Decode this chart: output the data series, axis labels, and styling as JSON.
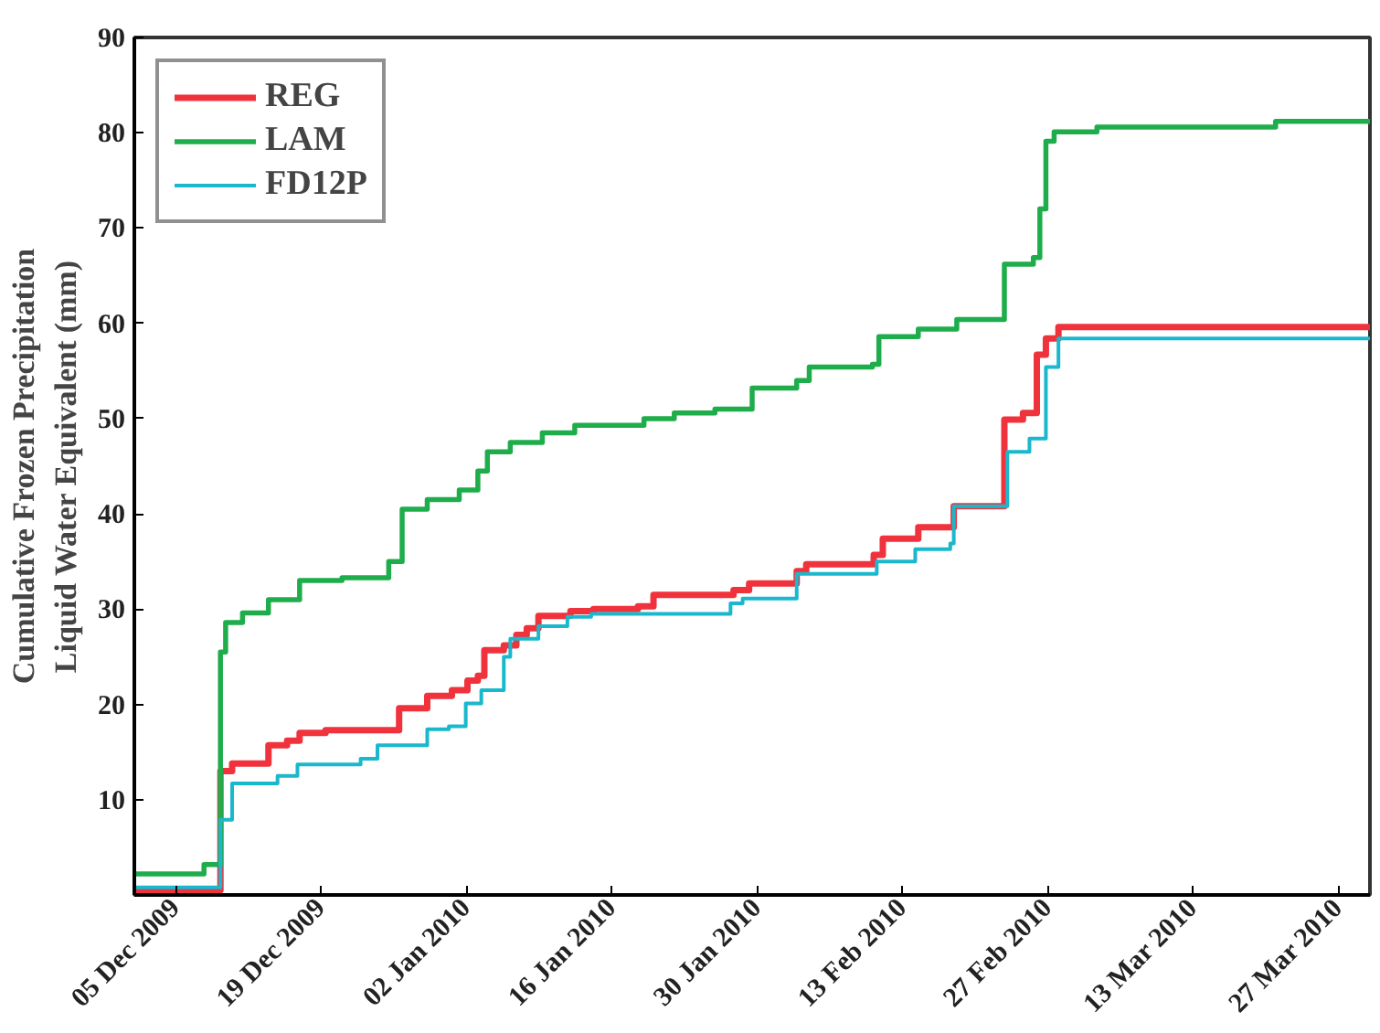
{
  "chart_data": {
    "type": "step",
    "ylabel": "Cumulative Frozen Precipitation\nLiquid Water Equivalent (mm)",
    "xlim": [
      "2009-12-01",
      "2010-03-30"
    ],
    "xticks": [
      {
        "value": "2009-12-05",
        "label": "05 Dec 2009"
      },
      {
        "value": "2009-12-19",
        "label": "19 Dec 2009"
      },
      {
        "value": "2010-01-02",
        "label": "02 Jan 2010"
      },
      {
        "value": "2010-01-16",
        "label": "16 Jan 2010"
      },
      {
        "value": "2010-01-30",
        "label": "30 Jan 2010"
      },
      {
        "value": "2010-02-13",
        "label": "13 Feb 2010"
      },
      {
        "value": "2010-02-27",
        "label": "27 Feb 2010"
      },
      {
        "value": "2010-03-13",
        "label": "13 Mar 2010"
      },
      {
        "value": "2010-03-27",
        "label": "27 Mar 2010"
      }
    ],
    "ylim": [
      0,
      90
    ],
    "yticks": [
      10,
      20,
      30,
      40,
      50,
      60,
      70,
      80,
      90
    ],
    "grid": false,
    "legend": "top left",
    "series": [
      {
        "name": "REG",
        "color": "#f0323c",
        "x": [
          "2009-12-01",
          "2009-12-09T07:00",
          "2009-12-10T10:00",
          "2009-12-13T22:00",
          "2009-12-15T17:00",
          "2009-12-16T22:00",
          "2009-12-19T10:00",
          "2009-12-26T12:00",
          "2009-12-29T05:00",
          "2009-12-31T14:00",
          "2010-01-02T02:00",
          "2010-01-03T02:00",
          "2010-01-03T17:00",
          "2010-01-05T14:00",
          "2010-01-06T19:00",
          "2010-01-07T19:00",
          "2010-01-08T22:00",
          "2010-01-12",
          "2010-01-14T05:00",
          "2010-01-18T12:00",
          "2010-01-20",
          "2010-01-27T17:00",
          "2010-01-29T05:00",
          "2010-02-02T19:00",
          "2010-02-03T17:00",
          "2010-02-10T05:00",
          "2010-02-11T02:00",
          "2010-02-14T12:00",
          "2010-02-17T22:00",
          "2010-02-22T19:00",
          "2010-02-24T14:00",
          "2010-02-25T22:00",
          "2010-02-26T19:00",
          "2010-02-28",
          "2010-03-30"
        ],
        "values": [
          0.5,
          13,
          13.8,
          15.7,
          16.2,
          17,
          17.3,
          19.6,
          20.9,
          21.5,
          22.5,
          23,
          25.7,
          26.2,
          27.3,
          28,
          29.3,
          29.8,
          30,
          30.3,
          31.5,
          32,
          32.7,
          34,
          34.7,
          35.7,
          37.4,
          38.6,
          40.8,
          49.9,
          50.6,
          56.7,
          58.4,
          59.6,
          59.6
        ]
      },
      {
        "name": "LAM",
        "color": "#1fad4b",
        "x": [
          "2009-12-01",
          "2009-12-07T17:00",
          "2009-12-09T07:00",
          "2009-12-09T19:00",
          "2009-12-11T10:00",
          "2009-12-13T22:00",
          "2009-12-16T22:00",
          "2009-12-21",
          "2009-12-25T12:00",
          "2009-12-26T19:00",
          "2009-12-29T05:00",
          "2010-01-01T07:00",
          "2010-01-03T02:00",
          "2010-01-04",
          "2010-01-06T05:00",
          "2010-01-09T07:00",
          "2010-01-12T10:00",
          "2010-01-19T02:00",
          "2010-01-22",
          "2010-01-25T22:00",
          "2010-01-29T12:00",
          "2010-02-02T19:00",
          "2010-02-04",
          "2010-02-10T02:00",
          "2010-02-10T17:00",
          "2010-02-14T12:00",
          "2010-02-18T05:00",
          "2010-02-22T19:00",
          "2010-02-25T14:00",
          "2010-02-26T05:00",
          "2010-02-26T19:00",
          "2010-02-27T14:00",
          "2010-03-03T17:00",
          "2010-03-20T22:00",
          "2010-03-30"
        ],
        "values": [
          2.2,
          3.2,
          25.5,
          28.6,
          29.6,
          31,
          33,
          33.3,
          35,
          40.5,
          41.5,
          42.5,
          44.5,
          46.5,
          47.5,
          48.5,
          49.3,
          50,
          50.6,
          51,
          53.2,
          54,
          55.4,
          55.7,
          58.6,
          59.4,
          60.4,
          66.2,
          66.9,
          72,
          79.1,
          80.1,
          80.6,
          81.2,
          81.2
        ]
      },
      {
        "name": "FD12P",
        "color": "#1ab8cc",
        "x": [
          "2009-12-01",
          "2009-12-09T07:00",
          "2009-12-10T10:00",
          "2009-12-14T19:00",
          "2009-12-16T17:00",
          "2009-12-22T19:00",
          "2009-12-24T10:00",
          "2009-12-29T05:00",
          "2009-12-31T07:00",
          "2010-01-01T22:00",
          "2010-01-03T10:00",
          "2010-01-05T14:00",
          "2010-01-06T05:00",
          "2010-01-08T22:00",
          "2010-01-11T17:00",
          "2010-01-14",
          "2010-01-27T10:00",
          "2010-01-28T14:00",
          "2010-02-02T19:00",
          "2010-02-10T12:00",
          "2010-02-14T05:00",
          "2010-02-17T14:00",
          "2010-02-17T22:00",
          "2010-02-23T02:00",
          "2010-02-25T05:00",
          "2010-02-26T19:00",
          "2010-02-28",
          "2010-03-30"
        ],
        "values": [
          0.8,
          7.9,
          11.7,
          12.5,
          13.7,
          14.3,
          15.7,
          17.4,
          17.7,
          20.1,
          21.5,
          25,
          26.9,
          28.2,
          29.2,
          29.5,
          30.6,
          31.1,
          33.7,
          35,
          36.3,
          36.9,
          40.8,
          46.5,
          47.9,
          55.4,
          58.4,
          58.4
        ]
      }
    ]
  }
}
